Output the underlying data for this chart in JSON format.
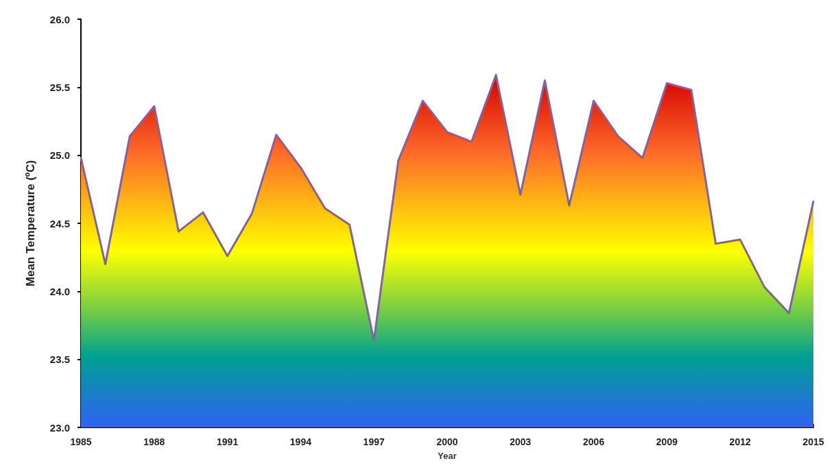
{
  "chart_data": {
    "type": "area",
    "xlabel": "Year",
    "ylabel": "Mean Temperature (ºC)",
    "x": [
      1985,
      1986,
      1987,
      1988,
      1989,
      1990,
      1991,
      1992,
      1993,
      1994,
      1995,
      1996,
      1997,
      1998,
      1999,
      2000,
      2001,
      2002,
      2003,
      2004,
      2005,
      2006,
      2007,
      2008,
      2009,
      2010,
      2011,
      2012,
      2013,
      2014,
      2015
    ],
    "series": [
      {
        "color": "#8064a2",
        "values": [
          24.98,
          24.2,
          25.14,
          25.36,
          24.44,
          24.58,
          24.26,
          24.57,
          25.15,
          24.91,
          24.61,
          24.49,
          23.64,
          24.96,
          25.4,
          25.17,
          25.1,
          25.59,
          24.71,
          25.55,
          24.63,
          25.4,
          25.14,
          24.98,
          25.53,
          25.48,
          24.35,
          24.38,
          24.03,
          23.84,
          24.66
        ]
      }
    ],
    "xlim": [
      1985,
      2015
    ],
    "xticks": [
      1985,
      1988,
      1991,
      1994,
      1997,
      2000,
      2003,
      2006,
      2009,
      2012,
      2015
    ],
    "ylim": [
      23,
      26
    ],
    "yticks": [
      {
        "value": 23,
        "label": "23.0"
      },
      {
        "value": 23.5,
        "label": "23.5"
      },
      {
        "value": 24,
        "label": "24.0"
      },
      {
        "value": 24.5,
        "label": "24.5"
      },
      {
        "value": 25,
        "label": "25.0"
      },
      {
        "value": 25.5,
        "label": "25.5"
      },
      {
        "value": 26,
        "label": "26.0"
      }
    ],
    "grid": false,
    "marker": "none",
    "line_style": "solid"
  }
}
